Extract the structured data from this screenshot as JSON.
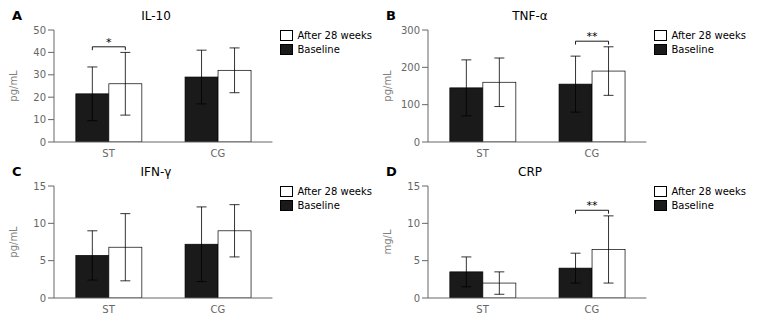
{
  "chart_data": [
    {
      "type": "bar",
      "label": "A",
      "title": "IL-10",
      "ylabel": "pg/mL",
      "categories": [
        "ST",
        "CG"
      ],
      "series": [
        {
          "name": "Baseline",
          "color": "#1a1a1a",
          "values": [
            21.5,
            29.0
          ],
          "errors": [
            12.0,
            12.0
          ]
        },
        {
          "name": "After 28 weeks",
          "color": "#ffffff",
          "values": [
            26.0,
            32.0
          ],
          "errors": [
            14.0,
            10.0
          ]
        }
      ],
      "ylim": [
        0,
        50
      ],
      "yticks": [
        0,
        10,
        20,
        30,
        40,
        50
      ],
      "grid": false,
      "legend": "upper right",
      "annotations": [
        {
          "text": "*",
          "category": "ST"
        }
      ]
    },
    {
      "type": "bar",
      "label": "B",
      "title": "TNF-α",
      "ylabel": "pg/mL",
      "categories": [
        "ST",
        "CG"
      ],
      "series": [
        {
          "name": "Baseline",
          "color": "#1a1a1a",
          "values": [
            145.0,
            155.0
          ],
          "errors": [
            75.0,
            75.0
          ]
        },
        {
          "name": "After 28 weeks",
          "color": "#ffffff",
          "values": [
            160.0,
            190.0
          ],
          "errors": [
            65.0,
            65.0
          ]
        }
      ],
      "ylim": [
        0,
        300
      ],
      "yticks": [
        0,
        100,
        200,
        300
      ],
      "grid": false,
      "legend": "upper right",
      "annotations": [
        {
          "text": "**",
          "category": "CG"
        }
      ]
    },
    {
      "type": "bar",
      "label": "C",
      "title": "IFN-γ",
      "ylabel": "pg/mL",
      "categories": [
        "ST",
        "CG"
      ],
      "series": [
        {
          "name": "Baseline",
          "color": "#1a1a1a",
          "values": [
            5.7,
            7.2
          ],
          "errors": [
            3.3,
            5.0
          ]
        },
        {
          "name": "After 28 weeks",
          "color": "#ffffff",
          "values": [
            6.8,
            9.0
          ],
          "errors": [
            4.5,
            3.5
          ]
        }
      ],
      "ylim": [
        0,
        15
      ],
      "yticks": [
        0,
        5,
        10,
        15
      ],
      "grid": false,
      "legend": "upper right"
    },
    {
      "type": "bar",
      "label": "D",
      "title": "CRP",
      "ylabel": "mg/L",
      "categories": [
        "ST",
        "CG"
      ],
      "series": [
        {
          "name": "Baseline",
          "color": "#1a1a1a",
          "values": [
            3.5,
            4.0
          ],
          "errors": [
            2.0,
            2.0
          ]
        },
        {
          "name": "After 28 weeks",
          "color": "#ffffff",
          "values": [
            2.0,
            6.5
          ],
          "errors": [
            1.5,
            4.5
          ]
        }
      ],
      "ylim": [
        0,
        15
      ],
      "yticks": [
        0,
        5,
        10,
        15
      ],
      "grid": false,
      "legend": "upper right",
      "annotations": [
        {
          "text": "**",
          "category": "CG"
        }
      ]
    }
  ]
}
